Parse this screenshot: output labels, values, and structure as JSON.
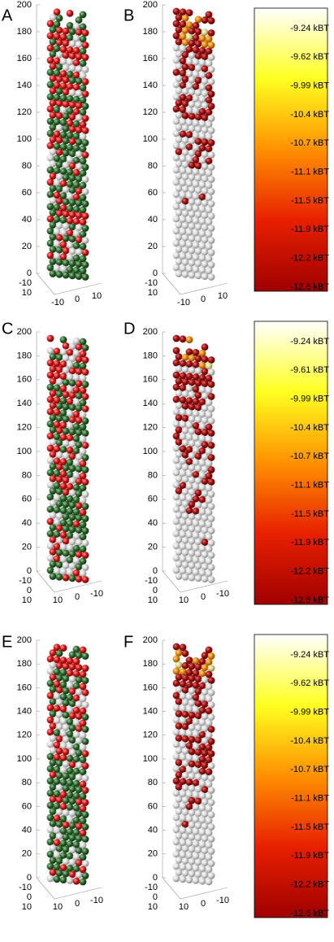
{
  "panels": [
    {
      "label": "A",
      "z_ticks": [
        0,
        20,
        40,
        60,
        80,
        100,
        120,
        140,
        160,
        180,
        200
      ],
      "side_ticks": [
        -10,
        10
      ],
      "bottom_ticks": [
        -10,
        0,
        10
      ]
    },
    {
      "label": "B",
      "z_ticks": [
        0,
        20,
        40,
        60,
        80,
        100,
        120,
        140,
        160,
        180,
        200
      ],
      "side_ticks": [
        -10,
        10
      ],
      "bottom_ticks": [
        -10,
        0,
        10
      ]
    },
    {
      "label": "C",
      "z_ticks": [
        0,
        20,
        40,
        60,
        80,
        100,
        120,
        140,
        160,
        180,
        200
      ],
      "side_ticks": [
        -10,
        0,
        10
      ],
      "bottom_ticks": [
        10,
        0,
        -10
      ]
    },
    {
      "label": "D",
      "z_ticks": [
        0,
        20,
        40,
        60,
        80,
        100,
        120,
        140,
        160,
        180,
        200
      ],
      "side_ticks": [
        -10,
        0,
        10
      ],
      "bottom_ticks": [
        10,
        0,
        -10
      ]
    },
    {
      "label": "E",
      "z_ticks": [
        0,
        20,
        40,
        60,
        80,
        100,
        120,
        140,
        160,
        180,
        200
      ],
      "side_ticks": [
        -10,
        0,
        10
      ],
      "bottom_ticks": [
        10,
        0,
        -10
      ]
    },
    {
      "label": "F",
      "z_ticks": [
        0,
        20,
        40,
        60,
        80,
        100,
        120,
        140,
        160,
        180,
        200
      ],
      "side_ticks": [
        -10,
        0,
        10
      ],
      "bottom_ticks": [
        10,
        0,
        -10
      ]
    }
  ],
  "colorbars": [
    {
      "labels": [
        "-9.24 kBT",
        "-9.62 kBT",
        "-9.99 kBT",
        "-10.4 kBT",
        "-10.7 kBT",
        "-11.1 kBT",
        "-11.5 kBT",
        "-11.9 kBT",
        "-12.2 kBT",
        "-12.6 kBT"
      ]
    },
    {
      "labels": [
        "-9.24 kBT",
        "-9.61 kBT",
        "-9.99 kBT",
        "-10.4 kBT",
        "-10.7 kBT",
        "-11.1 kBT",
        "-11.5 kBT",
        "-11.9 kBT",
        "-12.2 kBT",
        "-12.6 kBT"
      ]
    },
    {
      "labels": [
        "-9.24 kBT",
        "-9.62 kBT",
        "-9.99 kBT",
        "-10.4 kBT",
        "-10.7 kBT",
        "-11.1 kBT",
        "-11.5 kBT",
        "-11.9 kBT",
        "-12.2 kBT",
        "-12.6 kBT"
      ]
    }
  ]
}
